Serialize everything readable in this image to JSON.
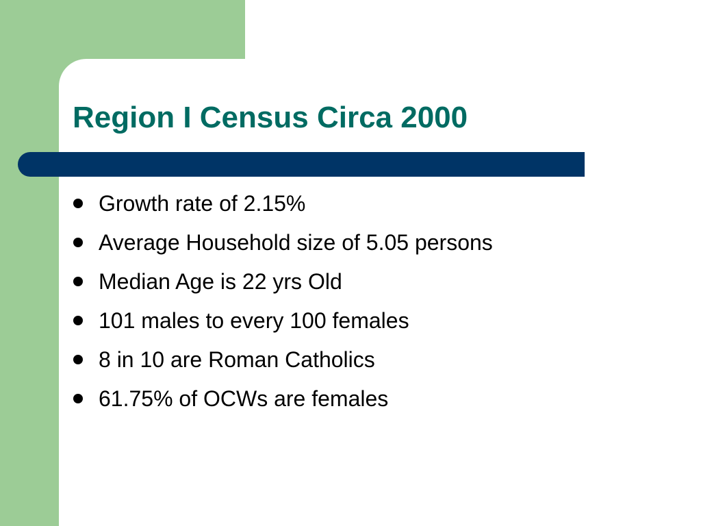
{
  "slide": {
    "title": "Region I Census Circa 2000",
    "bullets": [
      "Growth rate of 2.15%",
      "Average Household size of 5.05 persons",
      "Median Age is 22 yrs Old",
      "101 males to every 100 females",
      "8 in 10 are Roman Catholics",
      "61.75% of OCWs are females"
    ]
  },
  "colors": {
    "accent_green": "#9ccc96",
    "title_bar": "#003466",
    "title_text": "#006b62",
    "body_text": "#000000",
    "background": "#ffffff"
  }
}
